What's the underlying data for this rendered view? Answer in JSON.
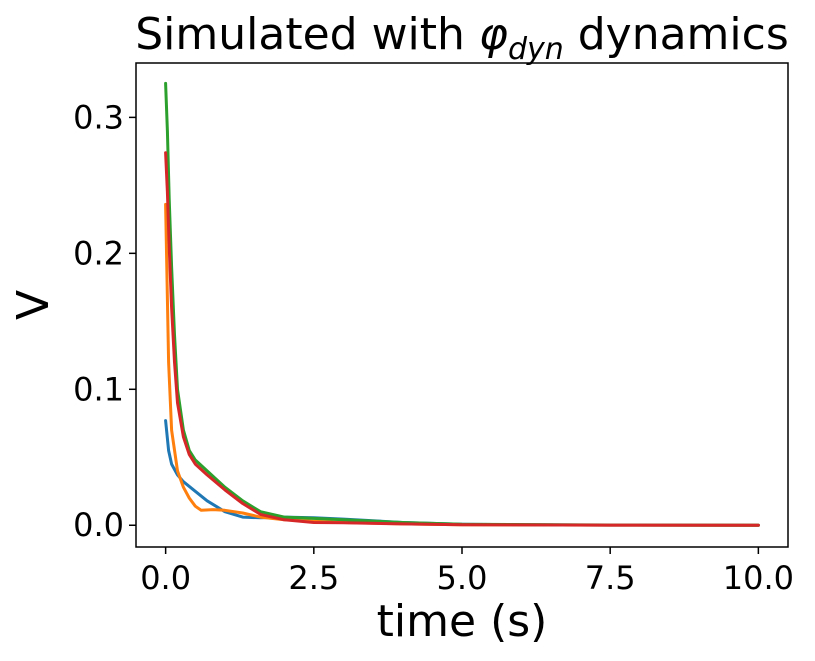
{
  "chart_data": {
    "type": "line",
    "title": {
      "prefix": "Simulated with ",
      "symbol": "φ",
      "subscript": "dyn",
      "suffix": " dynamics"
    },
    "xlabel": "time (s)",
    "ylabel": "V",
    "xlim": [
      -0.5,
      10.5
    ],
    "ylim": [
      -0.016,
      0.34
    ],
    "xticks": [
      0.0,
      2.5,
      5.0,
      7.5,
      10.0
    ],
    "xtick_labels": [
      "0.0",
      "2.5",
      "5.0",
      "7.5",
      "10.0"
    ],
    "yticks": [
      0.0,
      0.1,
      0.2,
      0.3
    ],
    "ytick_labels": [
      "0.0",
      "0.1",
      "0.2",
      "0.3"
    ],
    "grid": false,
    "legend": false,
    "series": [
      {
        "color": "#1f77b4",
        "x": [
          0.0,
          0.05,
          0.1,
          0.2,
          0.3,
          0.5,
          0.7,
          1.0,
          1.3,
          1.6,
          2.0,
          2.5,
          3.0,
          4.0,
          5.0,
          6.0,
          7.5,
          10.0
        ],
        "y": [
          0.077,
          0.055,
          0.045,
          0.037,
          0.032,
          0.025,
          0.018,
          0.01,
          0.006,
          0.0055,
          0.006,
          0.0055,
          0.0045,
          0.002,
          0.0008,
          0.0003,
          0.0001,
          0.0
        ]
      },
      {
        "color": "#ff7f0e",
        "x": [
          0.0,
          0.05,
          0.1,
          0.2,
          0.3,
          0.4,
          0.5,
          0.6,
          0.8,
          1.0,
          1.3,
          1.6,
          2.0,
          2.5,
          3.0,
          4.0,
          5.0,
          7.5,
          10.0
        ],
        "y": [
          0.236,
          0.12,
          0.07,
          0.04,
          0.028,
          0.02,
          0.014,
          0.011,
          0.0115,
          0.011,
          0.009,
          0.006,
          0.004,
          0.003,
          0.002,
          0.001,
          0.0004,
          0.0001,
          0.0
        ]
      },
      {
        "color": "#2ca02c",
        "x": [
          0.0,
          0.03,
          0.06,
          0.1,
          0.15,
          0.2,
          0.3,
          0.4,
          0.5,
          0.7,
          1.0,
          1.3,
          1.6,
          2.0,
          2.5,
          3.0,
          4.0,
          5.0,
          7.5,
          10.0
        ],
        "y": [
          0.325,
          0.29,
          0.24,
          0.19,
          0.14,
          0.1,
          0.07,
          0.055,
          0.048,
          0.04,
          0.028,
          0.018,
          0.01,
          0.006,
          0.005,
          0.004,
          0.002,
          0.0008,
          0.0002,
          0.0
        ]
      },
      {
        "color": "#d62728",
        "x": [
          0.0,
          0.03,
          0.06,
          0.1,
          0.15,
          0.2,
          0.3,
          0.4,
          0.5,
          0.7,
          1.0,
          1.3,
          1.6,
          2.0,
          2.5,
          3.0,
          4.0,
          5.0,
          7.5,
          10.0
        ],
        "y": [
          0.274,
          0.245,
          0.205,
          0.16,
          0.12,
          0.09,
          0.065,
          0.052,
          0.045,
          0.037,
          0.026,
          0.016,
          0.008,
          0.004,
          0.002,
          0.0018,
          0.001,
          0.0004,
          0.0001,
          0.0
        ]
      }
    ]
  }
}
